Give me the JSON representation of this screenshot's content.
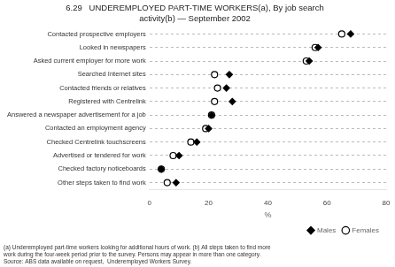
{
  "chart_data": {
    "type": "dot",
    "orientation": "horizontal",
    "title": [
      "6.29   UNDEREMPLOYED PART-TIME WORKERS(a), By job search",
      "activity(b) — September 2002"
    ],
    "categories": [
      "Contacted prospective employers",
      "Looked in newspapers",
      "Asked current employer for more work",
      "Searched Internet sites",
      "Contacted friends or relatives",
      "Registered with Centrelink",
      "Answered a newspaper advertisement for a job",
      "Contacted an employment agency",
      "Checked Centrelink touchscreens",
      "Advertised or tendered for work",
      "Checked factory noticeboards",
      "Other steps taken to find work"
    ],
    "series": [
      {
        "name": "Males",
        "color": "#000000",
        "marker": "diamond",
        "values": [
          68,
          57,
          54,
          27,
          26,
          28,
          21,
          20,
          16,
          10,
          4,
          9
        ]
      },
      {
        "name": "Females",
        "color": "#000000",
        "marker": "open_circle",
        "values": [
          65,
          56,
          53,
          22,
          23,
          22,
          21,
          19,
          14,
          8,
          4,
          6
        ]
      }
    ],
    "xlabel": "%",
    "xlim": [
      0,
      80
    ],
    "xticks": [
      0,
      20,
      40,
      60,
      80
    ],
    "grid": "y",
    "legend": "lower right",
    "annotations": [
      "(a) Underemployed part-time workers looking for additional hours of work. (b) All steps taken to find more",
      "work during the four-week period prior to the survey. Persons may appear in more than one category.",
      "Source: ABS data available on request,  Underemployed Workers Survey."
    ]
  }
}
